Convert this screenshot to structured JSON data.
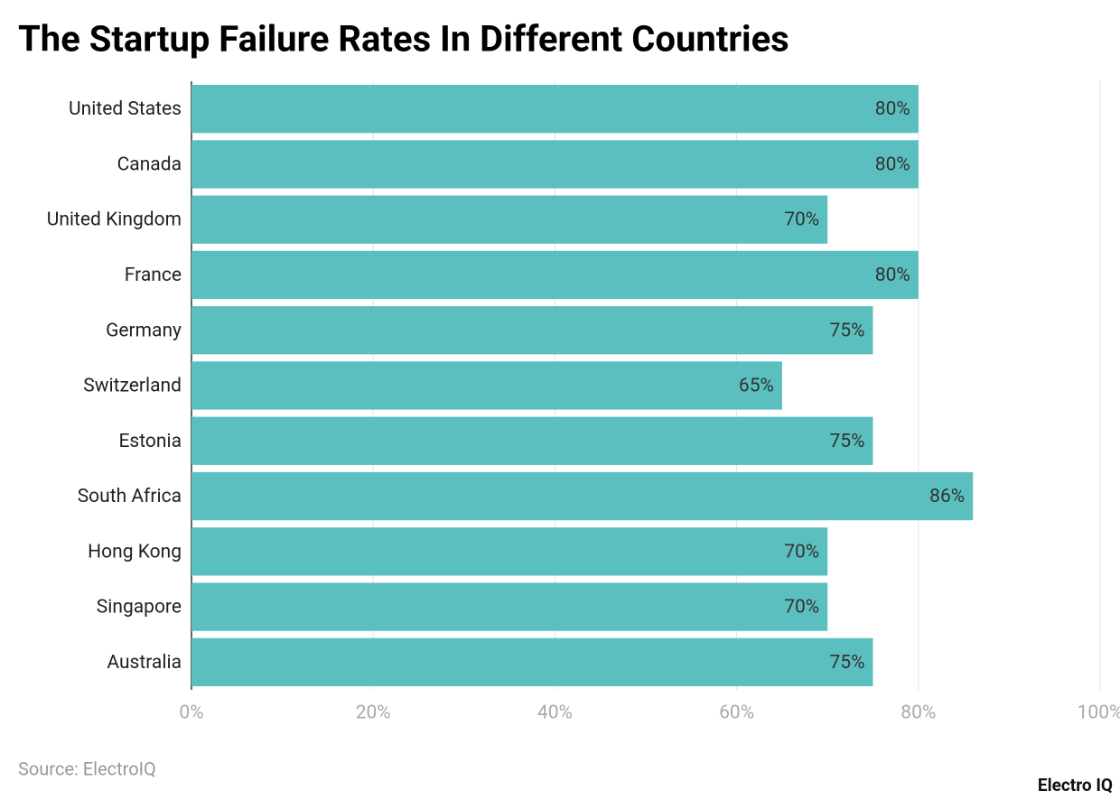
{
  "chart_data": {
    "type": "hbar",
    "title": "The Startup Failure Rates In Different Countries",
    "categories": [
      "United States",
      "Canada",
      "United Kingdom",
      "France",
      "Germany",
      "Switzerland",
      "Estonia",
      "South Africa",
      "Hong Kong",
      "Singapore",
      "Australia"
    ],
    "values": [
      80,
      80,
      70,
      80,
      75,
      65,
      75,
      86,
      70,
      70,
      75
    ],
    "value_labels": [
      "80%",
      "80%",
      "70%",
      "80%",
      "75%",
      "65%",
      "75%",
      "86%",
      "70%",
      "70%",
      "75%"
    ],
    "color": "#5bbfbf",
    "xlim": [
      0,
      100
    ],
    "xticks": [
      {
        "value": 0,
        "label": "0%"
      },
      {
        "value": 20,
        "label": "20%"
      },
      {
        "value": 40,
        "label": "40%"
      },
      {
        "value": 60,
        "label": "60%"
      },
      {
        "value": 80,
        "label": "80%"
      },
      {
        "value": 100,
        "label": "100%"
      }
    ],
    "grid": true,
    "source": "Source: ElectroIQ",
    "watermark": "Electro IQ"
  }
}
